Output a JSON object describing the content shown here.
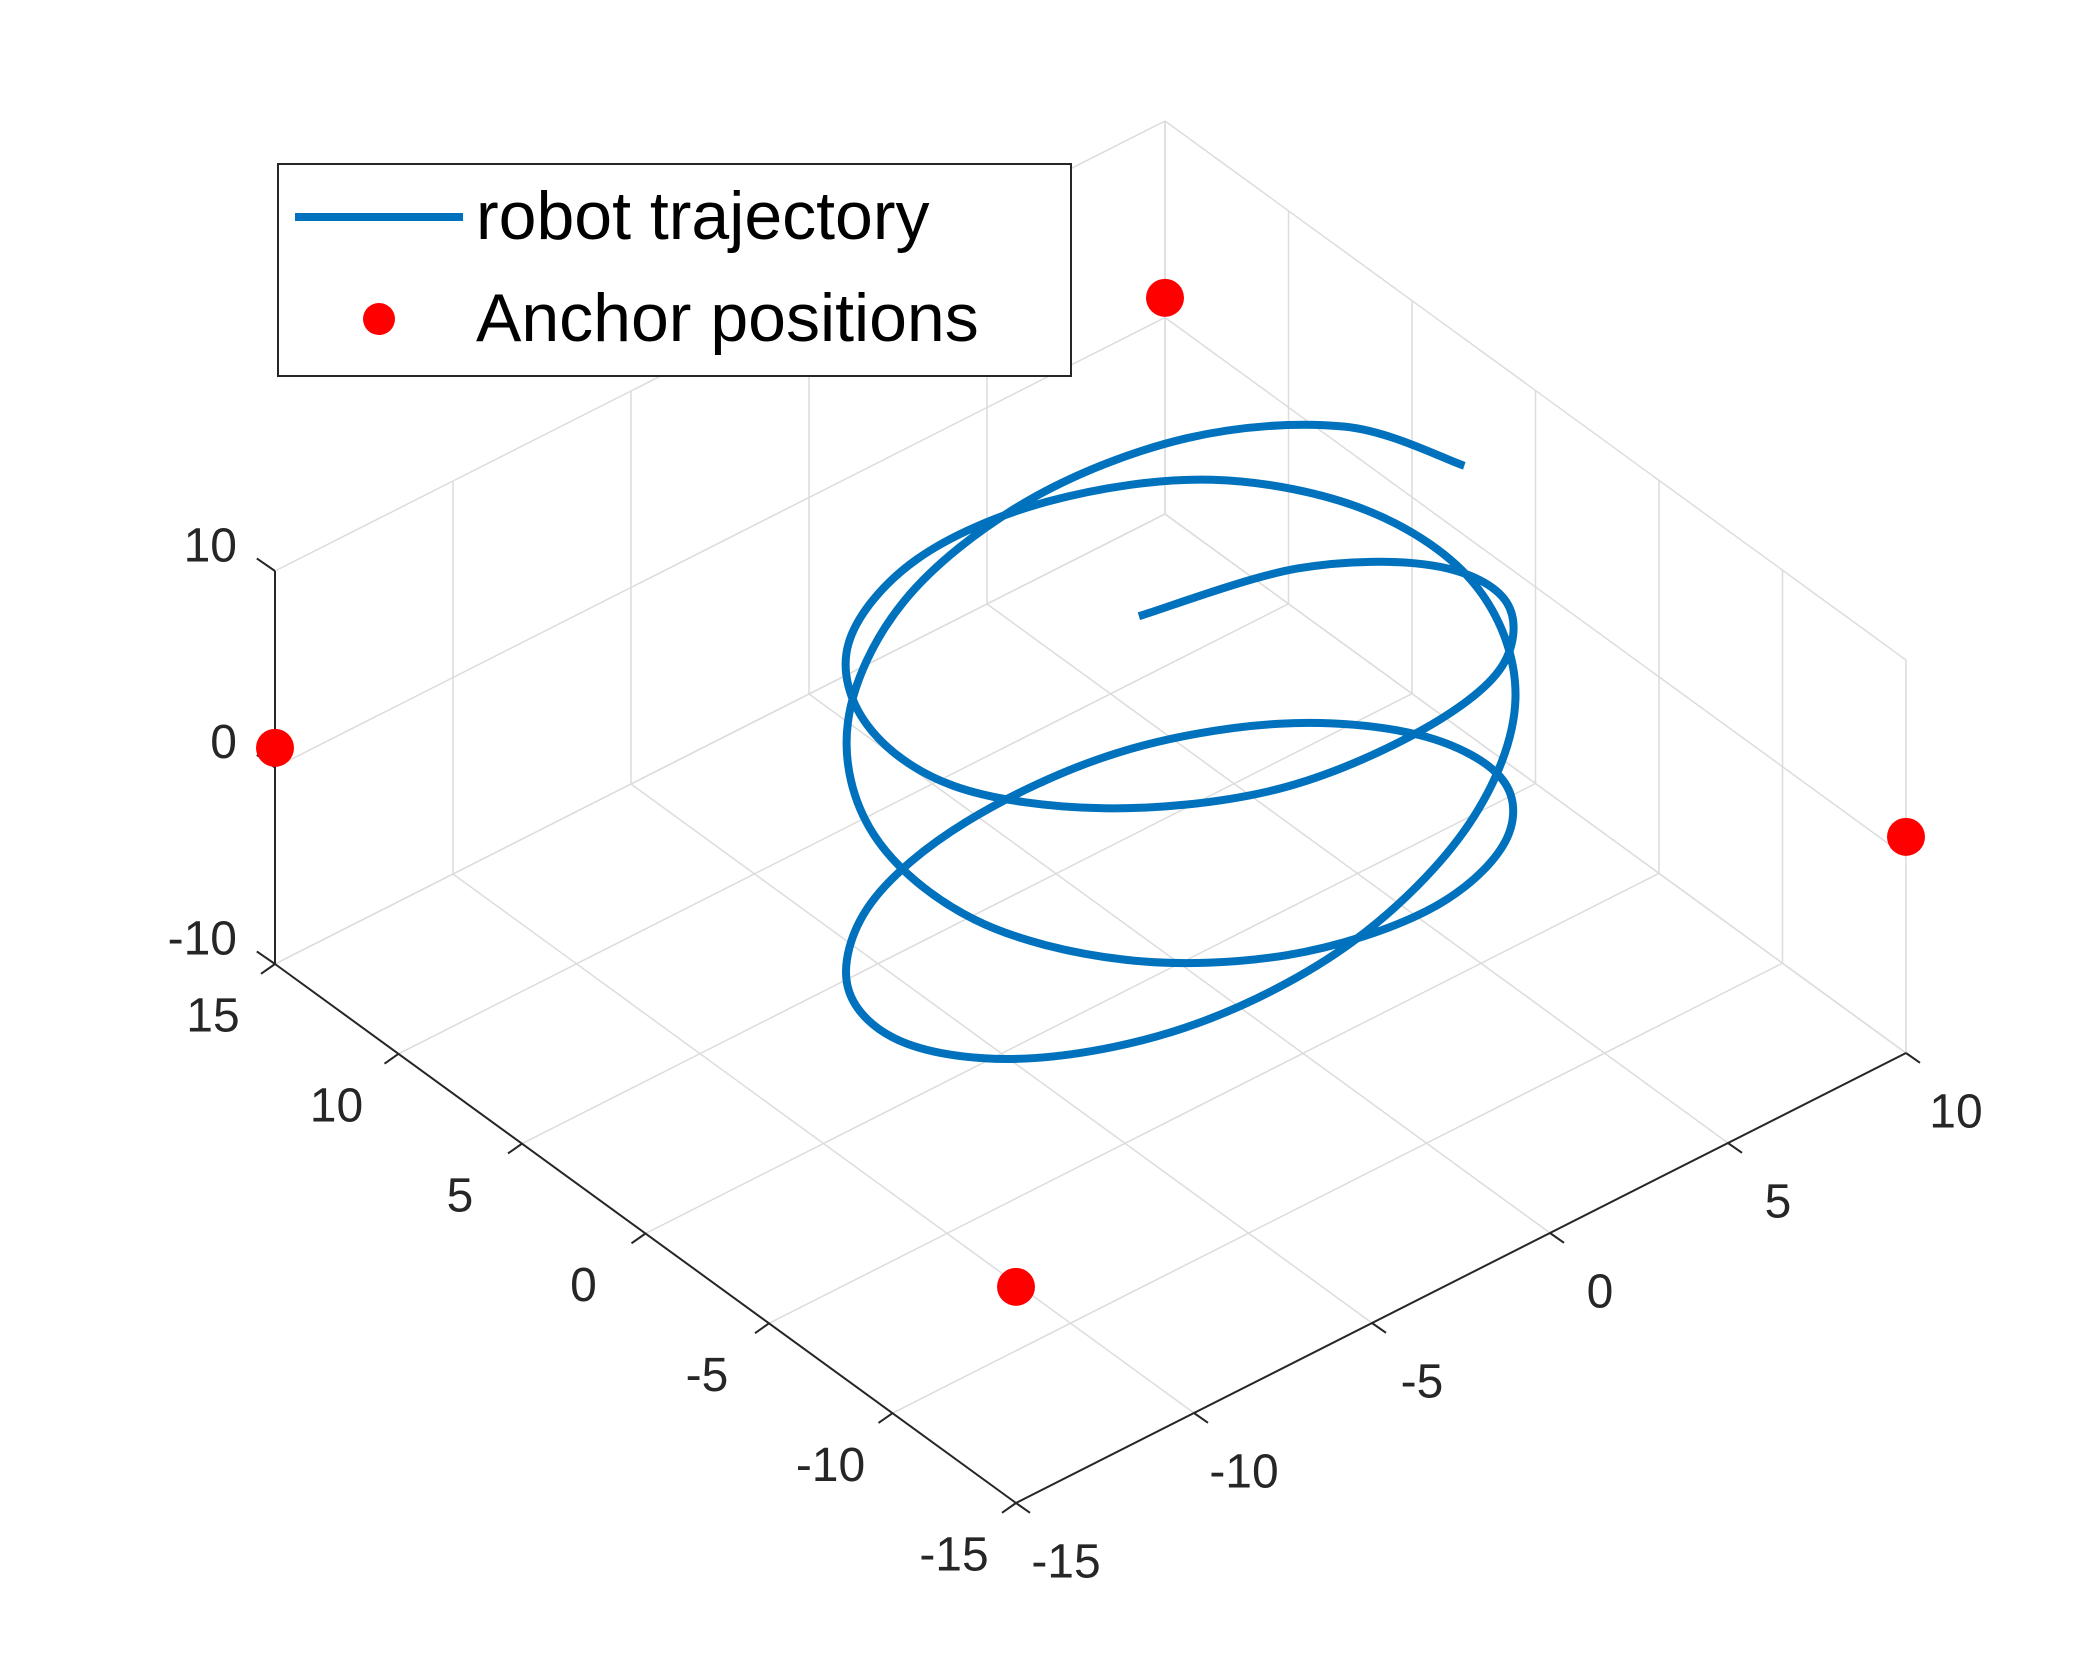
{
  "chart_data": {
    "type": "line3d",
    "xlim": [
      -15,
      10
    ],
    "ylim": [
      -15,
      15
    ],
    "zlim": [
      -10,
      10
    ],
    "xticks": [
      -15,
      -10,
      -5,
      0,
      5,
      10
    ],
    "yticks": [
      -15,
      -10,
      -5,
      0,
      5,
      10,
      15
    ],
    "zticks": [
      -10,
      0,
      10
    ],
    "grid": true,
    "legend": "northwest",
    "series": [
      {
        "name": "robot trajectory",
        "type": "line",
        "color": "#0072BD",
        "x": [
          8.0,
          7.0,
          4.3,
          0.6,
          -3.3,
          -6.4,
          -7.9,
          -7.5,
          -5.2,
          -1.7,
          2.3,
          5.7,
          7.7,
          7.8,
          6.0,
          2.8,
          -1.2,
          -4.8,
          -7.3,
          -8.0,
          -6.7,
          -3.8,
          0.0,
          3.9,
          6.8,
          8.0,
          7.3,
          4.8,
          1.1,
          -2.8,
          -6.1,
          -7.8,
          -7.7,
          -5.6,
          -2.2,
          1.8,
          5.3,
          7.6,
          7.9,
          6.3,
          3.3
        ],
        "y": [
          0,
          3.4,
          5.9,
          7.0,
          6.4,
          4.2,
          1.0,
          -2.5,
          -5.3,
          -6.8,
          -6.7,
          -4.9,
          -2.0,
          1.5,
          4.6,
          6.6,
          6.9,
          5.6,
          2.9,
          -0.5,
          -3.8,
          -6.2,
          -7.0,
          -6.1,
          -3.8,
          -0.5,
          2.9,
          5.6,
          6.9,
          6.6,
          4.6,
          1.4,
          -2.0,
          -5.0,
          -6.8,
          -6.7,
          -5.3,
          -2.3,
          1.1,
          4.3,
          6.4
        ],
        "z": [
          8,
          7.8,
          7.4,
          6.6,
          5.6,
          4.3,
          2.9,
          1.4,
          -0.2,
          -1.8,
          -3.3,
          -4.7,
          -5.9,
          -6.9,
          -7.5,
          -7.9,
          -8,
          -7.7,
          -7.2,
          -6.3,
          -5.2,
          -3.9,
          -2.5,
          -0.9,
          0.7,
          2.3,
          3.7,
          5.1,
          6.2,
          7.1,
          7.7,
          8.0,
          7.9,
          7.6,
          7.0,
          6.0,
          4.9,
          3.5,
          2.0,
          0.4,
          -1.2
        ]
      },
      {
        "name": "Anchor positions",
        "type": "scatter",
        "color": "#ff0000",
        "x": [
          10,
          -15,
          10,
          -15
        ],
        "y": [
          15,
          15,
          -15,
          -15
        ],
        "z": [
          1,
          1,
          1,
          1
        ]
      }
    ]
  }
}
